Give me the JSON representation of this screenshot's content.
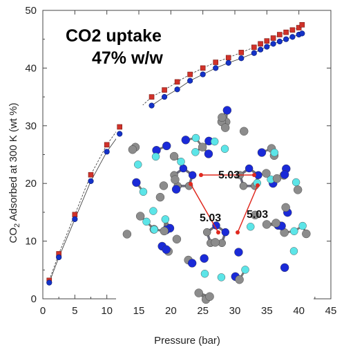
{
  "chart_data": {
    "type": "scatter",
    "title": "",
    "annotation": {
      "line1": "CO2 uptake",
      "line2": "47% w/w"
    },
    "xlabel": "Pressure (bar)",
    "ylabel_main": "CO",
    "ylabel_sub": "2",
    "ylabel_rest": " Adsorbed at 300 K (wt %)",
    "xlim": [
      0,
      45
    ],
    "ylim": [
      0,
      50
    ],
    "xticks": [
      0,
      5,
      10,
      15,
      20,
      25,
      30,
      35,
      40,
      45
    ],
    "yticks": [
      0,
      10,
      20,
      30,
      40,
      50
    ],
    "grid": false,
    "legend": "none",
    "series": [
      {
        "marker": "square",
        "color": "#d0322a",
        "x": [
          1,
          2.5,
          5,
          7.5,
          10,
          12,
          17,
          19,
          21,
          23,
          25,
          27,
          29,
          31,
          33,
          34,
          35,
          36,
          37,
          38,
          39,
          40,
          40.5
        ],
        "y": [
          3.2,
          7.8,
          14.6,
          21.5,
          26.7,
          29.8,
          35.0,
          36.2,
          37.6,
          38.9,
          40.0,
          41.0,
          41.8,
          42.7,
          43.6,
          44.2,
          44.7,
          45.2,
          45.8,
          46.2,
          46.6,
          47.0,
          47.5
        ]
      },
      {
        "marker": "circle",
        "color": "#1432c8",
        "x": [
          1,
          2.5,
          5,
          7.5,
          10,
          12,
          17,
          19,
          21,
          23,
          25,
          27,
          29,
          31,
          33,
          34,
          35,
          36,
          37,
          38,
          39,
          40,
          40.5
        ],
        "y": [
          2.8,
          7.2,
          13.8,
          20.4,
          25.5,
          28.6,
          33.5,
          35.0,
          36.3,
          37.8,
          38.9,
          40.0,
          40.9,
          41.7,
          42.6,
          43.2,
          43.7,
          44.2,
          44.6,
          45.0,
          45.4,
          45.8,
          46.0
        ]
      }
    ],
    "inset": {
      "distances": [
        "5.03",
        "5.03",
        "5.03"
      ]
    }
  }
}
